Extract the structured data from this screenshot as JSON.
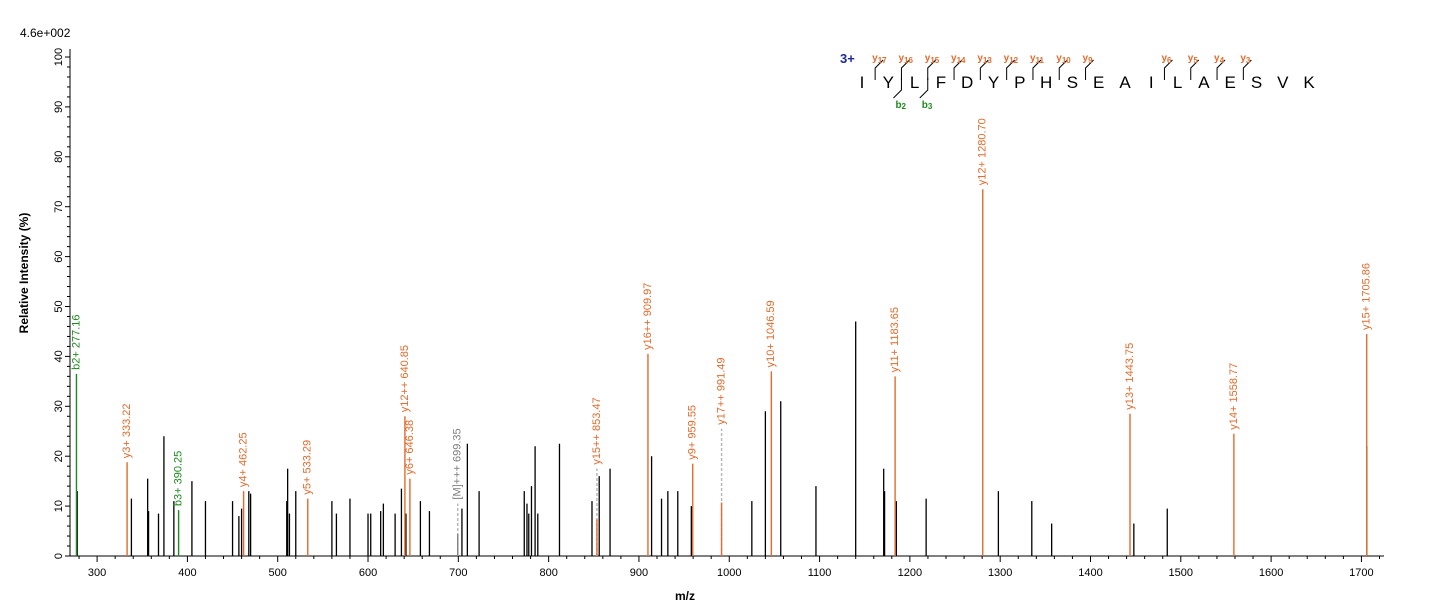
{
  "chart_data": {
    "type": "bar",
    "title": "",
    "scale_label": "4.6e+002",
    "xlabel": "m/z",
    "ylabel": "Relative  Intensity (%)",
    "xlim": [
      270,
      1725
    ],
    "ylim": [
      0,
      100
    ],
    "x_ticks": [
      300,
      400,
      500,
      600,
      700,
      800,
      900,
      1000,
      1100,
      1200,
      1300,
      1400,
      1500,
      1600,
      1700
    ],
    "y_ticks": [
      0,
      10,
      20,
      30,
      40,
      50,
      60,
      70,
      80,
      90,
      100
    ],
    "colors": {
      "y_ion": "#e26b2d",
      "b_ion": "#1e8a1e",
      "unmatched": "#000000",
      "precursor": "#7f7f7f",
      "charge": "#1a2a9a"
    },
    "annotated_peaks": [
      {
        "mz": 277.16,
        "intensity": 36.5,
        "label": "b2+ 277.16",
        "ion": "b"
      },
      {
        "mz": 333.22,
        "intensity": 18.8,
        "label": "y3+ 333.22",
        "ion": "y"
      },
      {
        "mz": 390.25,
        "intensity": 9.2,
        "label": "b3+ 390.25",
        "ion": "b"
      },
      {
        "mz": 462.25,
        "intensity": 13.0,
        "label": "y4+ 462.25",
        "ion": "y"
      },
      {
        "mz": 533.29,
        "intensity": 11.5,
        "label": "y5+ 533.29",
        "ion": "y"
      },
      {
        "mz": 640.85,
        "intensity": 28.0,
        "label": "y12++ 640.85",
        "ion": "y"
      },
      {
        "mz": 646.38,
        "intensity": 15.5,
        "label": "y6+ 646.38",
        "ion": "y"
      },
      {
        "mz": 699.35,
        "intensity": 10.5,
        "label": "[M]+++ 699.35",
        "ion": "precursor",
        "dashed": true
      },
      {
        "mz": 853.47,
        "intensity": 17.5,
        "label": "y15++ 853.47",
        "ion": "y",
        "dashed": true
      },
      {
        "mz": 909.97,
        "intensity": 40.5,
        "label": "y16++ 909.97",
        "ion": "y"
      },
      {
        "mz": 959.55,
        "intensity": 18.5,
        "label": "y9+ 959.55",
        "ion": "y"
      },
      {
        "mz": 991.49,
        "intensity": 25.5,
        "label": "y17++ 991.49",
        "ion": "y",
        "dashed": true
      },
      {
        "mz": 1046.59,
        "intensity": 37.0,
        "label": "y10+ 1046.59",
        "ion": "y"
      },
      {
        "mz": 1183.65,
        "intensity": 36.0,
        "label": "y11+ 1183.65",
        "ion": "y"
      },
      {
        "mz": 1280.7,
        "intensity": 73.5,
        "label": "y12+ 1280.70",
        "ion": "y"
      },
      {
        "mz": 1443.75,
        "intensity": 28.5,
        "label": "y13+ 1443.75",
        "ion": "y"
      },
      {
        "mz": 1558.77,
        "intensity": 24.5,
        "label": "y14+ 1558.77",
        "ion": "y"
      },
      {
        "mz": 1705.86,
        "intensity": 44.5,
        "label": "y15+ 1705.86",
        "ion": "y"
      }
    ],
    "unannotated_peaks": [
      [
        278,
        13
      ],
      [
        338,
        11.5
      ],
      [
        356,
        15.5
      ],
      [
        357,
        9
      ],
      [
        368,
        8.5
      ],
      [
        374,
        24
      ],
      [
        385,
        11
      ],
      [
        405,
        15
      ],
      [
        420,
        11
      ],
      [
        450,
        11
      ],
      [
        457,
        8
      ],
      [
        460,
        9.5
      ],
      [
        468,
        13
      ],
      [
        470,
        12.5
      ],
      [
        510,
        11
      ],
      [
        511,
        17.5
      ],
      [
        513,
        8.5
      ],
      [
        520,
        13
      ],
      [
        560,
        11
      ],
      [
        565,
        8.5
      ],
      [
        580,
        11.5
      ],
      [
        600,
        8.5
      ],
      [
        603,
        8.5
      ],
      [
        614,
        9
      ],
      [
        617,
        10.5
      ],
      [
        630,
        8.5
      ],
      [
        637,
        13.5
      ],
      [
        642,
        8.5
      ],
      [
        658,
        11
      ],
      [
        668,
        9
      ],
      [
        704,
        9.5
      ],
      [
        710,
        22.5
      ],
      [
        723,
        13
      ],
      [
        773,
        13
      ],
      [
        776,
        10.5
      ],
      [
        778,
        8.5
      ],
      [
        781,
        14
      ],
      [
        785,
        22
      ],
      [
        788,
        8.5
      ],
      [
        812,
        22.5
      ],
      [
        848,
        11
      ],
      [
        856,
        16
      ],
      [
        868,
        17.5
      ],
      [
        914,
        20
      ],
      [
        925,
        11.5
      ],
      [
        932,
        13
      ],
      [
        943,
        13
      ],
      [
        958,
        10
      ],
      [
        1025,
        11
      ],
      [
        1040,
        29
      ],
      [
        1057,
        31
      ],
      [
        1096,
        14
      ],
      [
        1140,
        47
      ],
      [
        1171,
        17.5
      ],
      [
        1172,
        13
      ],
      [
        1185,
        11
      ],
      [
        1218,
        11.5
      ],
      [
        1298,
        13
      ],
      [
        1335,
        11
      ],
      [
        1357,
        6.5
      ],
      [
        1448,
        6.5
      ],
      [
        1485,
        9.5
      ],
      [
        1706,
        22
      ]
    ],
    "sequence": {
      "charge": "3+",
      "letters": [
        "I",
        "Y",
        "L",
        "F",
        "D",
        "Y",
        "P",
        "H",
        "S",
        "E",
        "A",
        "I",
        "L",
        "A",
        "E",
        "S",
        "V",
        "K"
      ],
      "y_fragments": [
        {
          "ion": "y",
          "num": "17",
          "after": 0
        },
        {
          "ion": "y",
          "num": "16",
          "after": 1
        },
        {
          "ion": "y",
          "num": "15",
          "after": 2
        },
        {
          "ion": "y",
          "num": "14",
          "after": 3
        },
        {
          "ion": "y",
          "num": "13",
          "after": 4
        },
        {
          "ion": "y",
          "num": "12",
          "after": 5
        },
        {
          "ion": "y",
          "num": "11",
          "after": 6
        },
        {
          "ion": "y",
          "num": "10",
          "after": 7
        },
        {
          "ion": "y",
          "num": "9",
          "after": 8
        },
        {
          "ion": "y",
          "num": "6",
          "after": 11
        },
        {
          "ion": "y",
          "num": "5",
          "after": 12
        },
        {
          "ion": "y",
          "num": "4",
          "after": 13
        },
        {
          "ion": "y",
          "num": "3",
          "after": 14
        }
      ],
      "b_fragments": [
        {
          "ion": "b",
          "num": "2",
          "after": 1
        },
        {
          "ion": "b",
          "num": "3",
          "after": 2
        }
      ]
    }
  }
}
